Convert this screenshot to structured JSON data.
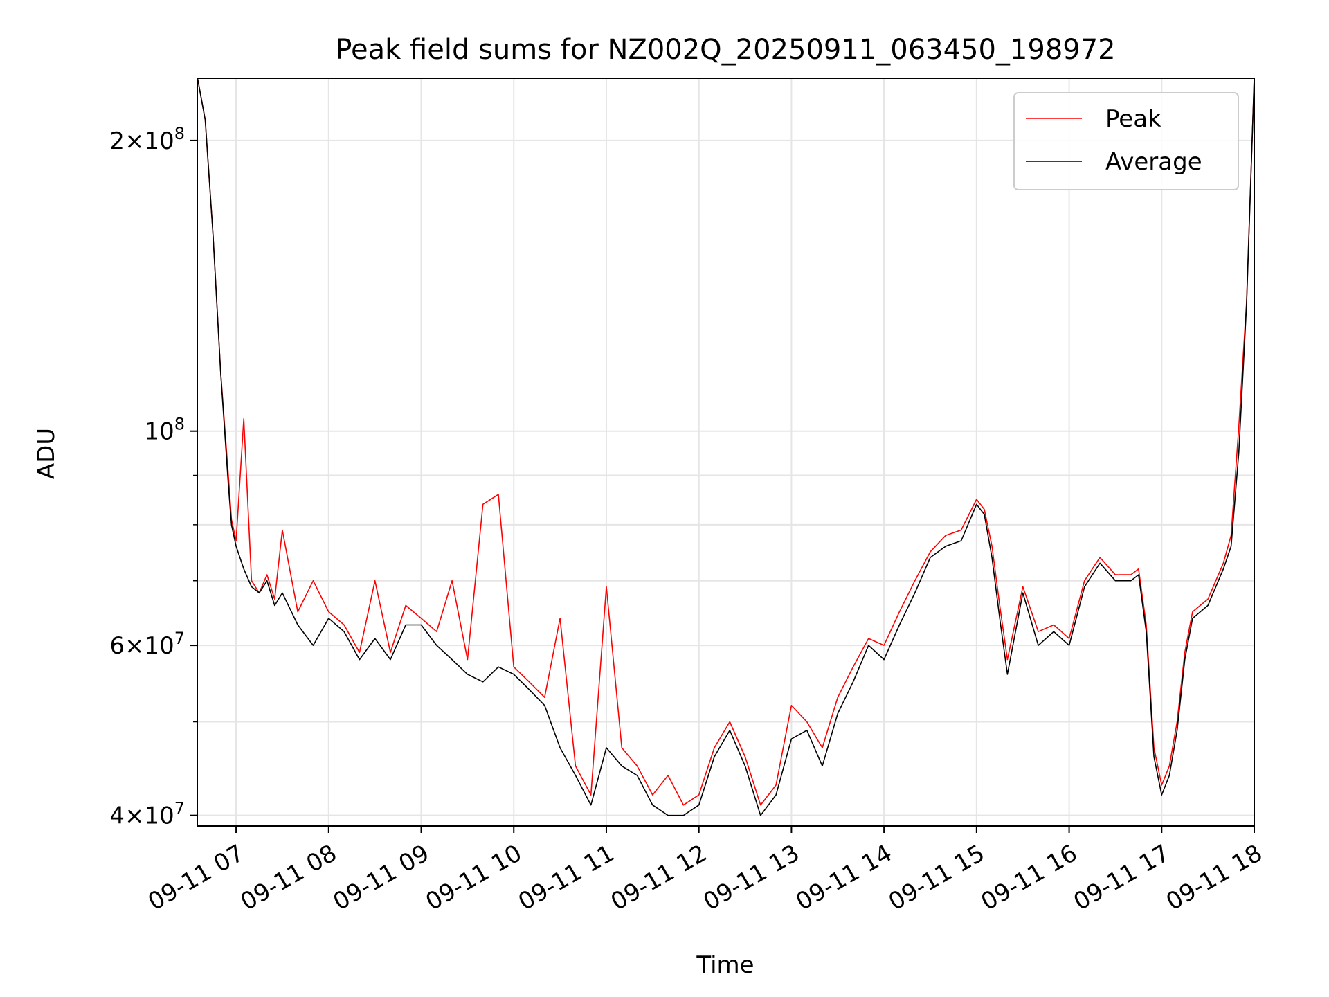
{
  "chart_data": {
    "type": "line",
    "title": "Peak field sums for NZ002Q_20250911_063450_198972",
    "xlabel": "Time",
    "ylabel": "ADU",
    "yscale": "log",
    "ylim": [
      39000000,
      232000000
    ],
    "xlim": [
      "2025-09-11T06:34:50",
      "2025-09-11T18:00:00"
    ],
    "grid": true,
    "legend_position": "top-right",
    "x_ticks": [
      {
        "value": "2025-09-11T07:00",
        "label": "09-11 07"
      },
      {
        "value": "2025-09-11T08:00",
        "label": "09-11 08"
      },
      {
        "value": "2025-09-11T09:00",
        "label": "09-11 09"
      },
      {
        "value": "2025-09-11T10:00",
        "label": "09-11 10"
      },
      {
        "value": "2025-09-11T11:00",
        "label": "09-11 11"
      },
      {
        "value": "2025-09-11T12:00",
        "label": "09-11 12"
      },
      {
        "value": "2025-09-11T13:00",
        "label": "09-11 13"
      },
      {
        "value": "2025-09-11T14:00",
        "label": "09-11 14"
      },
      {
        "value": "2025-09-11T15:00",
        "label": "09-11 15"
      },
      {
        "value": "2025-09-11T16:00",
        "label": "09-11 16"
      },
      {
        "value": "2025-09-11T17:00",
        "label": "09-11 17"
      },
      {
        "value": "2025-09-11T18:00",
        "label": "09-11 18"
      }
    ],
    "y_ticks": [
      {
        "value": 40000000,
        "mantissa": "4",
        "exp": "7"
      },
      {
        "value": 60000000,
        "mantissa": "6",
        "exp": "7"
      },
      {
        "value": 100000000,
        "mantissa": "",
        "exp": "8"
      },
      {
        "value": 200000000,
        "mantissa": "2",
        "exp": "8"
      }
    ],
    "y_minor_ticks": [
      50000000,
      70000000,
      80000000,
      90000000
    ],
    "x": [
      "06:35",
      "06:40",
      "06:45",
      "06:50",
      "06:55",
      "06:57",
      "07:00",
      "07:05",
      "07:10",
      "07:15",
      "07:20",
      "07:25",
      "07:30",
      "07:40",
      "07:50",
      "08:00",
      "08:10",
      "08:20",
      "08:30",
      "08:40",
      "08:50",
      "09:00",
      "09:10",
      "09:20",
      "09:30",
      "09:40",
      "09:50",
      "10:00",
      "10:10",
      "10:20",
      "10:30",
      "10:40",
      "10:50",
      "11:00",
      "11:10",
      "11:20",
      "11:30",
      "11:40",
      "11:50",
      "12:00",
      "12:10",
      "12:20",
      "12:30",
      "12:40",
      "12:50",
      "13:00",
      "13:10",
      "13:20",
      "13:30",
      "13:40",
      "13:50",
      "14:00",
      "14:10",
      "14:20",
      "14:30",
      "14:40",
      "14:50",
      "15:00",
      "15:05",
      "15:10",
      "15:15",
      "15:20",
      "15:30",
      "15:40",
      "15:50",
      "16:00",
      "16:10",
      "16:20",
      "16:30",
      "16:40",
      "16:45",
      "16:50",
      "16:55",
      "17:00",
      "17:05",
      "17:10",
      "17:15",
      "17:20",
      "17:30",
      "17:40",
      "17:45",
      "17:50",
      "17:55",
      "18:00"
    ],
    "series": [
      {
        "name": "Average",
        "color": "#000000",
        "values": [
          232000000,
          210000000,
          160000000,
          115000000,
          88000000,
          80000000,
          76000000,
          72000000,
          69000000,
          68000000,
          70000000,
          66000000,
          68000000,
          63000000,
          60000000,
          64000000,
          62000000,
          58000000,
          61000000,
          58000000,
          63000000,
          63000000,
          60000000,
          58000000,
          56000000,
          55000000,
          57000000,
          56000000,
          54000000,
          52000000,
          47000000,
          44000000,
          41000000,
          47000000,
          45000000,
          44000000,
          41000000,
          40000000,
          40000000,
          41000000,
          46000000,
          49000000,
          45000000,
          40000000,
          42000000,
          48000000,
          49000000,
          45000000,
          51000000,
          55000000,
          60000000,
          58000000,
          63000000,
          68000000,
          74000000,
          76000000,
          77000000,
          84000000,
          82000000,
          74000000,
          64000000,
          56000000,
          68000000,
          60000000,
          62000000,
          60000000,
          69000000,
          73000000,
          70000000,
          70000000,
          71000000,
          62000000,
          46000000,
          42000000,
          44000000,
          49000000,
          58000000,
          64000000,
          66000000,
          72000000,
          76000000,
          95000000,
          135000000,
          232000000
        ]
      },
      {
        "name": "Peak",
        "color": "#ff0000",
        "values": [
          232000000,
          210000000,
          160000000,
          115000000,
          90000000,
          81000000,
          77000000,
          103000000,
          70000000,
          68000000,
          71000000,
          67000000,
          79000000,
          65000000,
          70000000,
          65000000,
          63000000,
          59000000,
          70000000,
          59000000,
          66000000,
          64000000,
          62000000,
          70000000,
          58000000,
          84000000,
          86000000,
          57000000,
          55000000,
          53000000,
          64000000,
          45000000,
          42000000,
          69000000,
          47000000,
          45000000,
          42000000,
          44000000,
          41000000,
          42000000,
          47000000,
          50000000,
          46000000,
          41000000,
          43000000,
          52000000,
          50000000,
          47000000,
          53000000,
          57000000,
          61000000,
          60000000,
          65000000,
          70000000,
          75000000,
          78000000,
          79000000,
          85000000,
          83000000,
          76000000,
          66000000,
          58000000,
          69000000,
          62000000,
          63000000,
          61000000,
          70000000,
          74000000,
          71000000,
          71000000,
          72000000,
          63000000,
          47000000,
          43000000,
          45000000,
          50000000,
          59000000,
          65000000,
          67000000,
          73000000,
          78000000,
          101000000,
          136000000,
          232000000
        ]
      }
    ]
  }
}
